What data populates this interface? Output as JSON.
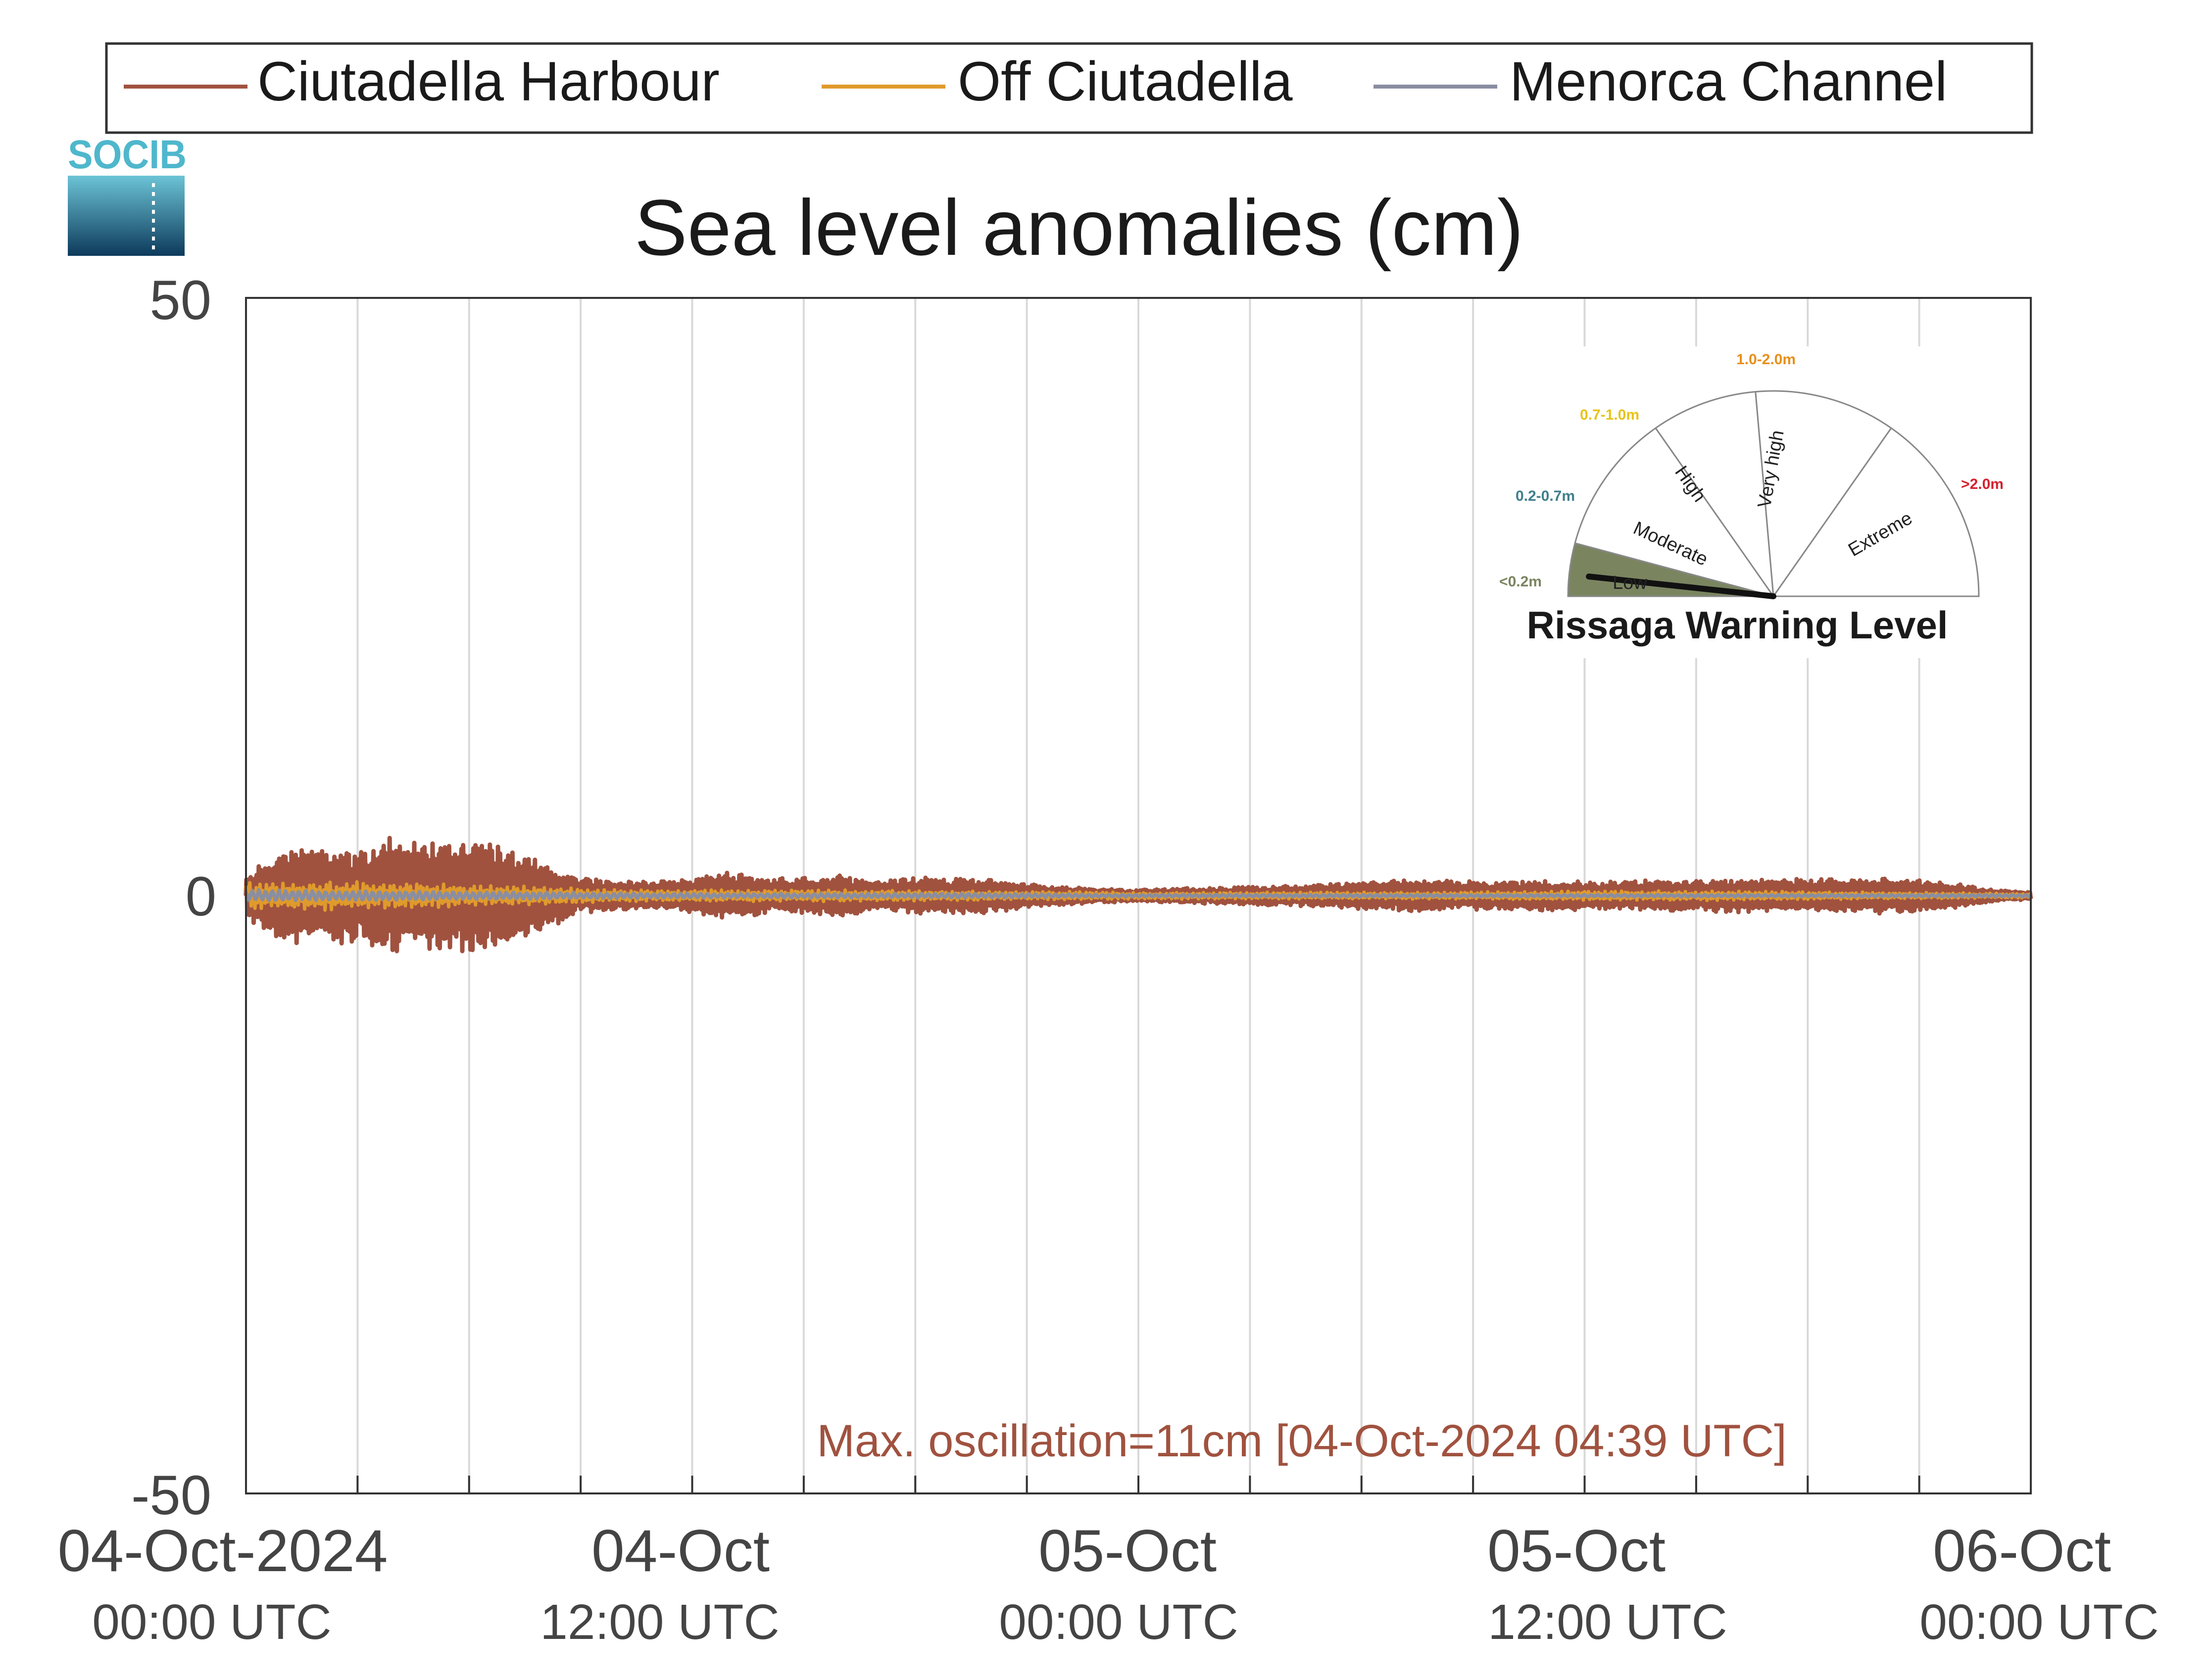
{
  "brand": {
    "logo_text": "SOCIB"
  },
  "chart_data": {
    "type": "line",
    "title": "Sea level anomalies (cm)",
    "xlabel": "",
    "ylabel": "",
    "ylim": [
      -50,
      50
    ],
    "yticks": [
      "50",
      "0",
      "-50"
    ],
    "xlim_hours": [
      0,
      48
    ],
    "grid": "vertical",
    "xtick_labels": [
      {
        "hour": 0,
        "date": "04-Oct-2024",
        "time": "00:00 UTC"
      },
      {
        "hour": 12,
        "date": "04-Oct",
        "time": "12:00 UTC"
      },
      {
        "hour": 24,
        "date": "05-Oct",
        "time": "00:00 UTC"
      },
      {
        "hour": 36,
        "date": "05-Oct",
        "time": "12:00 UTC"
      },
      {
        "hour": 48,
        "date": "06-Oct",
        "time": "00:00 UTC"
      }
    ],
    "legend_position": "top",
    "series": [
      {
        "name": "Ciutadella Harbour",
        "color": "#a0523f",
        "envelope_hours": [
          0,
          1,
          2,
          3,
          4,
          5,
          6,
          7,
          8,
          9,
          10,
          11,
          12,
          13,
          14,
          15,
          16,
          17,
          18,
          19,
          20,
          21,
          22,
          23,
          24,
          25,
          26,
          27,
          28,
          29,
          30,
          31,
          32,
          33,
          34,
          35,
          36,
          37,
          38,
          39,
          40,
          41,
          42,
          43,
          44,
          45,
          46,
          47,
          48
        ],
        "envelope_amplitude_cm": [
          2,
          4,
          4,
          4,
          5,
          4.5,
          5,
          4,
          3,
          1.5,
          1.2,
          1.2,
          1.5,
          2,
          1.5,
          1.5,
          1.8,
          1.3,
          1.5,
          1.5,
          1.5,
          1,
          0.8,
          0.6,
          0.5,
          0.6,
          0.7,
          0.8,
          0.8,
          1,
          1.2,
          1.3,
          1.3,
          1.2,
          1.2,
          1.3,
          1.2,
          1.2,
          1.3,
          1.3,
          1.4,
          1.4,
          1.4,
          1.5,
          1.5,
          1.3,
          1,
          0.5,
          0.3
        ],
        "baseline_cm": [
          0,
          0,
          0,
          0,
          0,
          0,
          0,
          0,
          0,
          0,
          0,
          0,
          0,
          0,
          0,
          0,
          0,
          0,
          0,
          0,
          0,
          0,
          0,
          0,
          0,
          0,
          0,
          0,
          0,
          0,
          0,
          0,
          0,
          0,
          0,
          0,
          0,
          0,
          0,
          0,
          0,
          0,
          0,
          0,
          0,
          0,
          0,
          0,
          0
        ]
      },
      {
        "name": "Off Ciutadella",
        "color": "#e09a2c",
        "envelope_hours": [
          0,
          2,
          4,
          6,
          8,
          10,
          12,
          16,
          20,
          24,
          28,
          32,
          36,
          40,
          44,
          48
        ],
        "envelope_amplitude_cm": [
          1.2,
          1.3,
          1.2,
          1.0,
          0.8,
          0.5,
          0.5,
          0.5,
          0.4,
          0.3,
          0.3,
          0.3,
          0.4,
          0.4,
          0.3,
          0.2
        ]
      },
      {
        "name": "Menorca Channel",
        "color": "#8a8ea1",
        "envelope_hours": [
          0,
          4,
          8,
          12,
          16,
          20,
          24,
          28,
          32,
          36,
          40,
          44,
          48
        ],
        "envelope_amplitude_cm": [
          0.5,
          0.4,
          0.3,
          0.2,
          0.2,
          0.2,
          0.1,
          0.1,
          0.1,
          0.1,
          0.1,
          0.1,
          0.1
        ]
      }
    ],
    "annotation": "Max. oscillation=11cm [04-Oct-2024 04:39 UTC]",
    "annotation_color": "#a0523f"
  },
  "gauge": {
    "title": "Rissaga Warning Level",
    "needle_value_m": 0.05,
    "sectors": [
      {
        "name": "Low",
        "range": "<0.2m",
        "range_color": "#7a8560"
      },
      {
        "name": "Moderate",
        "range": "0.2-0.7m",
        "range_color": "#3f7f8c"
      },
      {
        "name": "High",
        "range": "0.7-1.0m",
        "range_color": "#e8c318"
      },
      {
        "name": "Very high",
        "range": "1.0-2.0m",
        "range_color": "#e88f1a"
      },
      {
        "name": "Extreme",
        "range": ">2.0m",
        "range_color": "#d4212e"
      }
    ],
    "active_fill": "#7a8560"
  }
}
